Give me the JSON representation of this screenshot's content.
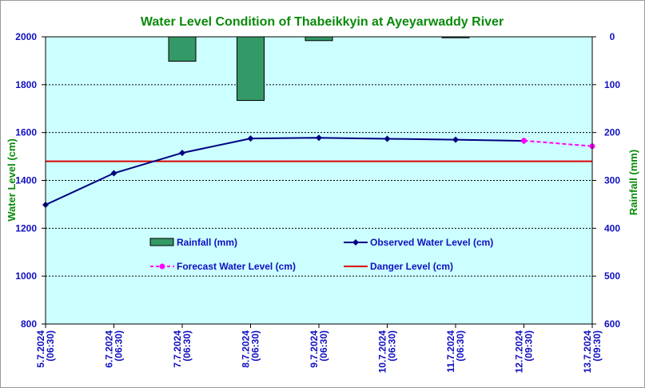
{
  "chart_data": {
    "type": "line",
    "title": "Water Level Condition of Thabeikkyin at Ayeyarwaddy River",
    "ylabel": "Water Level (cm)",
    "y2label": "Rainfall (mm)",
    "ylim": [
      800,
      2000
    ],
    "y2lim": [
      0,
      600
    ],
    "y2_inverted": true,
    "yticks": [
      "800",
      "1000",
      "1200",
      "1400",
      "1600",
      "1800",
      "2000"
    ],
    "y2ticks": [
      "0",
      "100",
      "200",
      "300",
      "400",
      "500",
      "600"
    ],
    "categories": [
      [
        "5.7.2024",
        "(06:30)"
      ],
      [
        "6.7.2024",
        "(06:30)"
      ],
      [
        "7.7.2024",
        "(06:30)"
      ],
      [
        "8.7.2024",
        "(06:30)"
      ],
      [
        "9.7.2024",
        "(06:30)"
      ],
      [
        "10.7.2024",
        "(06:30)"
      ],
      [
        "11.7.2024",
        "(06:30)"
      ],
      [
        "12.7.2024",
        "(09:30)"
      ],
      [
        "13.7.2024",
        "(09:30)"
      ]
    ],
    "grid": true,
    "legend_position": "inside-middle",
    "series": [
      {
        "name": "Rainfall (mm)",
        "kind": "bar",
        "axis": "y2",
        "color": "#339966",
        "values": [
          0,
          0,
          51,
          133,
          8,
          0,
          2,
          null,
          null
        ]
      },
      {
        "name": "Observed Water Level (cm)",
        "kind": "line",
        "axis": "y",
        "color": "#000080",
        "values": [
          1298,
          1430,
          1515,
          1575,
          1578,
          1574,
          1570,
          1565,
          null
        ]
      },
      {
        "name": "Forecast Water Level (cm)",
        "kind": "line-dashed",
        "axis": "y",
        "color": "#ff00ff",
        "values": [
          null,
          null,
          null,
          null,
          null,
          null,
          null,
          1566,
          1543
        ]
      },
      {
        "name": "Danger Level (cm)",
        "kind": "hline",
        "axis": "y",
        "color": "#dd0000",
        "value": 1480
      }
    ]
  }
}
